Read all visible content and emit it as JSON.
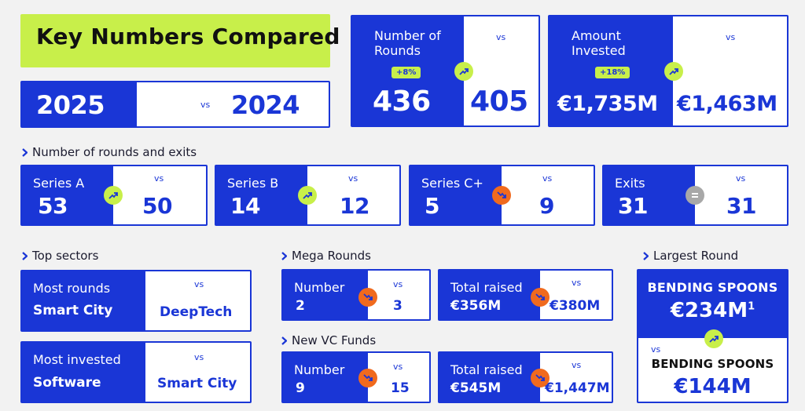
{
  "title": "Key Numbers Compared",
  "years": {
    "current": "2025",
    "vs": "vs",
    "previous": "2024"
  },
  "colors": {
    "blue": "#1a36d6",
    "lime": "#c8ef4a",
    "orange": "#f06a1e",
    "gray": "#a8a8a8"
  },
  "rounds": {
    "label_line1": "Number of",
    "label_line2": "Rounds",
    "change": "+8%",
    "vs": "vs",
    "current": "436",
    "previous": "405",
    "trend": "up"
  },
  "invested": {
    "label_line1": "Amount",
    "label_line2": "Invested",
    "change": "+18%",
    "vs": "vs",
    "current": "€1,735M",
    "previous": "€1,463M",
    "trend": "up"
  },
  "rounds_exits": {
    "heading": "Number of rounds and exits",
    "items": [
      {
        "label": "Series A",
        "current": "53",
        "vs": "vs",
        "previous": "50",
        "trend": "up"
      },
      {
        "label": "Series B",
        "current": "14",
        "vs": "vs",
        "previous": "12",
        "trend": "up"
      },
      {
        "label": "Series C+",
        "current": "5",
        "vs": "vs",
        "previous": "9",
        "trend": "down"
      },
      {
        "label": "Exits",
        "current": "31",
        "vs": "vs",
        "previous": "31",
        "trend": "equal"
      }
    ]
  },
  "top_sectors": {
    "heading": "Top sectors",
    "most_rounds": {
      "label": "Most rounds",
      "current": "Smart City",
      "vs": "vs",
      "previous": "DeepTech"
    },
    "most_invested": {
      "label": "Most invested",
      "current": "Software",
      "vs": "vs",
      "previous": "Smart City"
    }
  },
  "mega_rounds": {
    "heading": "Mega Rounds",
    "number": {
      "label": "Number",
      "current": "2",
      "vs": "vs",
      "previous": "3",
      "trend": "down"
    },
    "raised": {
      "label": "Total raised",
      "current": "€356M",
      "vs": "vs",
      "previous": "€380M",
      "trend": "down"
    }
  },
  "vc_funds": {
    "heading": "New VC Funds",
    "number": {
      "label": "Number",
      "current": "9",
      "vs": "vs",
      "previous": "15",
      "trend": "down"
    },
    "raised": {
      "label": "Total raised",
      "current": "€545M",
      "vs": "vs",
      "previous": "€1,447M",
      "trend": "down"
    }
  },
  "largest_round": {
    "heading": "Largest Round",
    "current_company": "BENDING SPOONS",
    "current_amount": "€234M",
    "footnote": "1",
    "vs": "vs",
    "previous_company": "BENDING SPOONS",
    "previous_amount": "€144M",
    "trend": "up"
  }
}
